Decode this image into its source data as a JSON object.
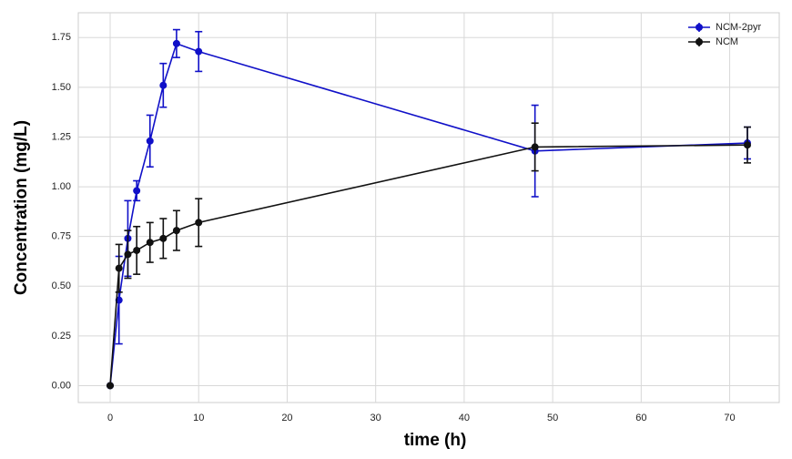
{
  "chart_data": {
    "type": "line",
    "xlabel": "time (h)",
    "ylabel": "Concentration (mg/L)",
    "x": [
      0,
      1,
      2,
      3,
      4.5,
      6,
      7.5,
      10,
      48,
      72
    ],
    "series": [
      {
        "name": "NCM-2pyr",
        "color": "#1010c8",
        "values": [
          0,
          0.43,
          0.74,
          0.98,
          1.23,
          1.51,
          1.72,
          1.68,
          1.18,
          1.22
        ],
        "errors": [
          0,
          0.22,
          0.19,
          0.05,
          0.13,
          0.11,
          0.07,
          0.1,
          0.23,
          0.08
        ]
      },
      {
        "name": "NCM",
        "color": "#111111",
        "values": [
          0,
          0.59,
          0.66,
          0.68,
          0.72,
          0.74,
          0.78,
          0.82,
          1.2,
          1.21
        ],
        "errors": [
          0,
          0.12,
          0.12,
          0.12,
          0.1,
          0.1,
          0.1,
          0.12,
          0.12,
          0.09
        ]
      }
    ],
    "xlim": [
      -3.6,
      75.6
    ],
    "xticks": [
      0,
      10,
      20,
      30,
      40,
      50,
      60,
      70
    ],
    "ylim": [
      -0.085,
      1.875
    ],
    "yticks": [
      {
        "value": 0,
        "label": "0.00"
      },
      {
        "value": 0.25,
        "label": "0.25"
      },
      {
        "value": 0.5,
        "label": "0.50"
      },
      {
        "value": 0.75,
        "label": "0.75"
      },
      {
        "value": 1,
        "label": "1.00"
      },
      {
        "value": 1.25,
        "label": "1.25"
      },
      {
        "value": 1.5,
        "label": "1.50"
      },
      {
        "value": 1.75,
        "label": "1.75"
      }
    ],
    "grid": true,
    "legend": "upper right"
  }
}
